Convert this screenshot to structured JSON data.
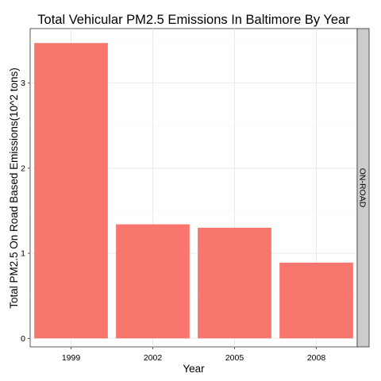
{
  "chart_data": {
    "type": "bar",
    "title": "Total Vehicular PM2.5 Emissions In Baltimore By Year",
    "xlabel": "Year",
    "ylabel": "Total PM2.5 On Road Based Emissions(10^2 tons)",
    "categories": [
      "1999",
      "2002",
      "2005",
      "2008"
    ],
    "values": [
      3.47,
      1.34,
      1.3,
      0.89
    ],
    "ylim": [
      -0.1,
      3.64
    ],
    "yticks": [
      "0",
      "1",
      "2",
      "3"
    ],
    "facet_label": "ON-ROAD",
    "bar_color": "#F8766D",
    "grid": true,
    "legend": "none"
  }
}
